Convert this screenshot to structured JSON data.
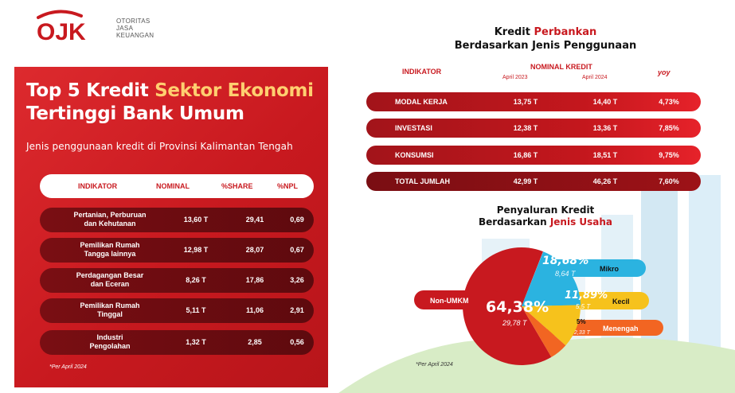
{
  "logo": {
    "mark": "OJK",
    "lines": [
      "OTORITAS",
      "JASA",
      "KEUANGAN"
    ]
  },
  "left": {
    "title_line1_a": "Top 5 Kredit ",
    "title_line1_b": "Sektor Ekonomi",
    "title_line2": "Tertinggi Bank Umum",
    "subtitle": "Jenis penggunaan kredit di Provinsi Kalimantan Tengah",
    "headers": {
      "indikator": "INDIKATOR",
      "nominal": "NOMINAL",
      "share": "%SHARE",
      "npl": "%NPL"
    },
    "rows": [
      {
        "indikator_1": "Pertanian, Perburuan",
        "indikator_2": "dan Kehutanan",
        "nominal": "13,60 T",
        "share": "29,41",
        "npl": "0,69"
      },
      {
        "indikator_1": "Pemilikan Rumah",
        "indikator_2": "Tangga lainnya",
        "nominal": "12,98 T",
        "share": "28,07",
        "npl": "0,67"
      },
      {
        "indikator_1": "Perdagangan Besar",
        "indikator_2": "dan Eceran",
        "nominal": "8,26 T",
        "share": "17,86",
        "npl": "3,26"
      },
      {
        "indikator_1": "Pemilikan Rumah",
        "indikator_2": "Tinggal",
        "nominal": "5,11 T",
        "share": "11,06",
        "npl": "2,91"
      },
      {
        "indikator_1": "Industri",
        "indikator_2": "Pengolahan",
        "nominal": "1,32 T",
        "share": "2,85",
        "npl": "0,56"
      }
    ],
    "note": "*Per April 2024"
  },
  "right": {
    "title_a": "Kredit ",
    "title_b": "Perbankan",
    "title_line2": "Berdasarkan Jenis Penggunaan",
    "headers": {
      "indikator": "INDIKATOR",
      "nominal": "NOMINAL KREDIT",
      "apr2023": "April 2023",
      "apr2024": "April 2024",
      "yoy": "yoy"
    },
    "rows": [
      {
        "indikator": "MODAL KERJA",
        "v2023": "13,75 T",
        "v2024": "14,40 T",
        "yoy": "4,73%"
      },
      {
        "indikator": "INVESTASI",
        "v2023": "12,38 T",
        "v2024": "13,36 T",
        "yoy": "7,85%"
      },
      {
        "indikator": "KONSUMSI",
        "v2023": "16,86 T",
        "v2024": "18,51 T",
        "yoy": "9,75%"
      },
      {
        "indikator": "TOTAL JUMLAH",
        "v2023": "42,99 T",
        "v2024": "46,26 T",
        "yoy": "7,60%"
      }
    ]
  },
  "pie": {
    "title_line1": "Penyaluran Kredit",
    "title_line2_a": "Berdasarkan ",
    "title_line2_b": "Jenis Usaha",
    "note": "*Per April 2024",
    "segments": [
      {
        "name": "Non-UMKM",
        "pct_label": "64,38%",
        "value_label": "29,78 T",
        "share": 0.6438,
        "color": "#c8191f"
      },
      {
        "name": "Mikro",
        "pct_label": "18,68%",
        "value_label": "8,64 T",
        "share": 0.1868,
        "color": "#2bb3e0"
      },
      {
        "name": "Kecil",
        "pct_label": "11,89%",
        "value_label": "5,5 T",
        "share": 0.1189,
        "color": "#f6c21c"
      },
      {
        "name": "Menengah",
        "pct_label": "5%",
        "value_label": "2,33 T",
        "share": 0.05,
        "color": "#f26522"
      }
    ]
  },
  "colors": {
    "brand_red": "#c8191f",
    "dark_red": "#7a0e13",
    "accent_yellow": "#ffcf70"
  }
}
